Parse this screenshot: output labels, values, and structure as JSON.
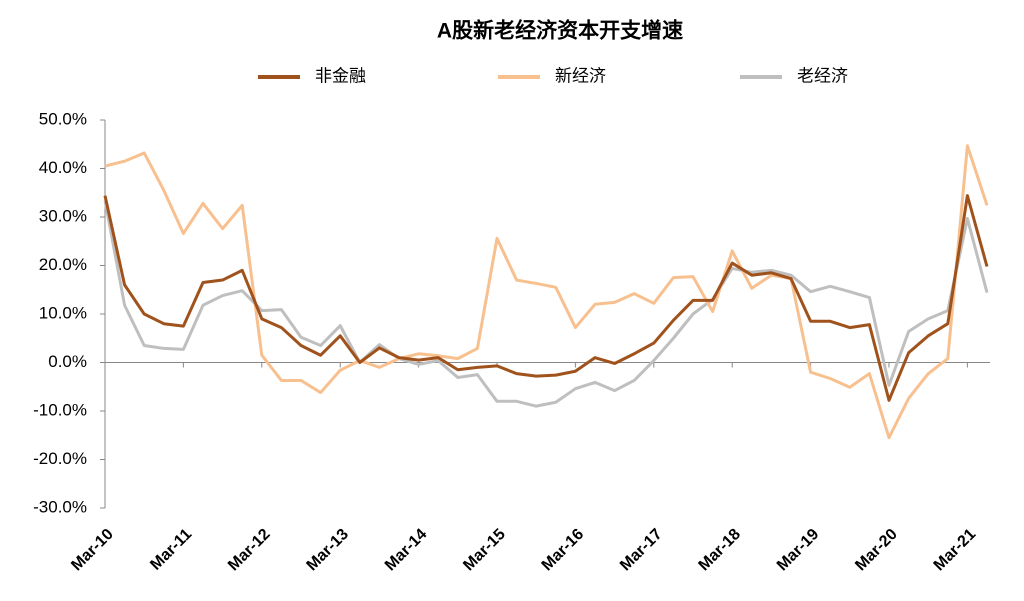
{
  "chart_data": {
    "type": "line",
    "title": "A股新老经济资本开支增速",
    "categories": [
      "Mar-10",
      null,
      null,
      null,
      "Mar-11",
      null,
      null,
      null,
      "Mar-12",
      null,
      null,
      null,
      "Mar-13",
      null,
      null,
      null,
      "Mar-14",
      null,
      null,
      null,
      "Mar-15",
      null,
      null,
      null,
      "Mar-16",
      null,
      null,
      null,
      "Mar-17",
      null,
      null,
      null,
      "Mar-18",
      null,
      null,
      null,
      "Mar-19",
      null,
      null,
      null,
      "Mar-20",
      null,
      null,
      null,
      "Mar-21",
      null
    ],
    "series": [
      {
        "name": "非金融",
        "color": "#a0521c",
        "values": [
          34.4,
          16,
          10,
          8,
          7.5,
          16.5,
          17,
          19,
          9,
          7.2,
          3.5,
          1.5,
          5.5,
          0,
          3,
          1,
          0.5,
          1,
          -1.5,
          -1,
          -0.7,
          -2.3,
          -2.8,
          -2.6,
          -1.8,
          1,
          -0.2,
          1.8,
          4,
          8.7,
          12.8,
          12.8,
          20.5,
          18,
          18.5,
          17.3,
          8.5,
          8.5,
          7.2,
          7.8,
          -7.8,
          2,
          5.5,
          8,
          34.4,
          19.8
        ]
      },
      {
        "name": "新经济",
        "color": "#f8c08f",
        "values": [
          40.5,
          41.5,
          43.2,
          35.5,
          26.6,
          32.8,
          27.6,
          32.4,
          1.5,
          -3.7,
          -3.7,
          -6.2,
          -1.6,
          0.4,
          -1,
          0.8,
          1.8,
          1.4,
          0.8,
          2.9,
          25.6,
          17,
          16.3,
          15.5,
          7.2,
          12,
          12.4,
          14.2,
          12.2,
          17.5,
          17.7,
          10.5,
          23,
          15.3,
          18,
          17.3,
          -2,
          -3.3,
          -5.1,
          -2.3,
          -15.5,
          -7.4,
          -2.3,
          0.8,
          44.7,
          32.4
        ]
      },
      {
        "name": "老经济",
        "color": "#bfbfbf",
        "values": [
          33.4,
          11.8,
          3.5,
          2.9,
          2.7,
          11.8,
          13.8,
          14.8,
          10.7,
          10.9,
          5.2,
          3.5,
          7.6,
          0,
          3.7,
          0.8,
          -0.4,
          0.4,
          -3.1,
          -2.5,
          -8,
          -8,
          -9,
          -8.2,
          -5.4,
          -4.1,
          -5.8,
          -3.7,
          0.4,
          5,
          10,
          13,
          19.4,
          18.6,
          19,
          18,
          14.6,
          15.7,
          14.6,
          13.4,
          -4.7,
          6.4,
          9,
          10.7,
          29.7,
          14.4
        ]
      }
    ],
    "ylim": [
      -30,
      50
    ],
    "yticks": [
      {
        "value": -30,
        "label": "-30.0%"
      },
      {
        "value": -20,
        "label": "-20.0%"
      },
      {
        "value": -10,
        "label": "-10.0%"
      },
      {
        "value": 0,
        "label": "0.0%"
      },
      {
        "value": 10,
        "label": "10.0%"
      },
      {
        "value": 20,
        "label": "20.0%"
      },
      {
        "value": 30,
        "label": "30.0%"
      },
      {
        "value": 40,
        "label": "40.0%"
      },
      {
        "value": 50,
        "label": "50.0%"
      }
    ],
    "grid": false
  }
}
